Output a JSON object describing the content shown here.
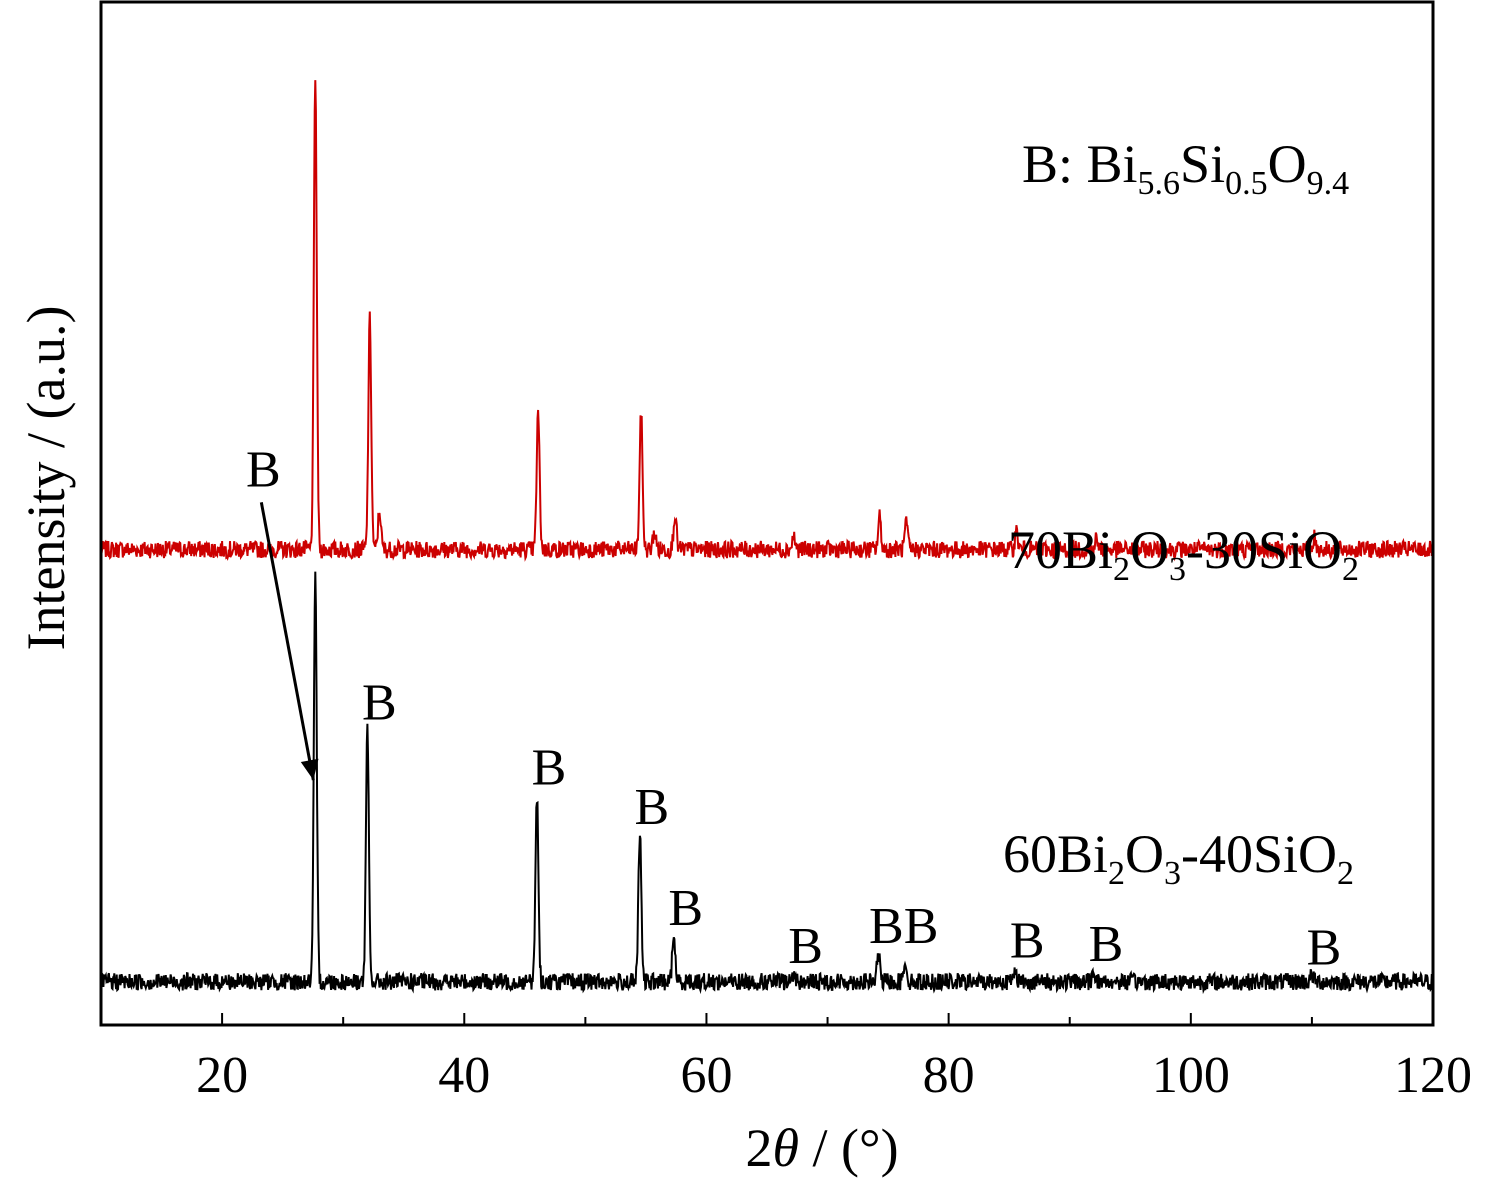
{
  "chart_data": {
    "type": "line",
    "xlabel_prefix": "2",
    "xlabel_theta": "θ",
    "xlabel_suffix": " / (°)",
    "ylabel": "Intensity / (a.u.)",
    "xlim": [
      10,
      120
    ],
    "xticks": [
      20,
      40,
      60,
      80,
      100,
      120
    ],
    "yticks_shown": false,
    "legend_note": {
      "prefix": "B: Bi",
      "sub1": "5.6",
      "mid1": "Si",
      "sub2": "0.5",
      "mid2": "O",
      "sub3": "9.4"
    },
    "series": [
      {
        "name": "70Bi2O3-30SiO2",
        "label_parts": {
          "a": "70Bi",
          "s1": "2",
          "b": "O",
          "s2": "3",
          "c": "-30SiO",
          "s3": "2"
        },
        "color": "#cc0000",
        "baseline": 6.6,
        "noise": 0.12,
        "peaks": [
          {
            "x": 27.7,
            "h": 6.6
          },
          {
            "x": 32.2,
            "h": 3.2
          },
          {
            "x": 33.0,
            "h": 0.55
          },
          {
            "x": 46.1,
            "h": 1.9
          },
          {
            "x": 54.6,
            "h": 1.9
          },
          {
            "x": 55.7,
            "h": 0.25
          },
          {
            "x": 57.4,
            "h": 0.5
          },
          {
            "x": 67.2,
            "h": 0.18
          },
          {
            "x": 74.3,
            "h": 0.45
          },
          {
            "x": 76.5,
            "h": 0.35
          },
          {
            "x": 85.6,
            "h": 0.25
          },
          {
            "x": 92.2,
            "h": 0.15
          },
          {
            "x": 110.2,
            "h": 0.18
          }
        ]
      },
      {
        "name": "60Bi2O3-40SiO2",
        "label_parts": {
          "a": "60Bi",
          "s1": "2",
          "b": "O",
          "s2": "3",
          "c": "-40SiO",
          "s3": "2"
        },
        "color": "#000000",
        "baseline": 0.6,
        "noise": 0.12,
        "peaks": [
          {
            "x": 27.7,
            "h": 5.6
          },
          {
            "x": 32.0,
            "h": 3.5
          },
          {
            "x": 46.0,
            "h": 2.6
          },
          {
            "x": 54.5,
            "h": 2.05
          },
          {
            "x": 57.3,
            "h": 0.65
          },
          {
            "x": 67.2,
            "h": 0.12
          },
          {
            "x": 74.2,
            "h": 0.4
          },
          {
            "x": 76.4,
            "h": 0.3
          },
          {
            "x": 85.5,
            "h": 0.2
          },
          {
            "x": 92.0,
            "h": 0.15
          },
          {
            "x": 110.0,
            "h": 0.1
          }
        ]
      }
    ],
    "ylim": [
      0,
      14.2
    ],
    "peak_markers": [
      {
        "label": "B",
        "x": 27.7,
        "arrow": true
      },
      {
        "label": "B",
        "x": 32.0
      },
      {
        "label": "B",
        "x": 46.0
      },
      {
        "label": "B",
        "x": 54.5
      },
      {
        "label": "B",
        "x": 57.3
      },
      {
        "label": "B",
        "x": 67.2
      },
      {
        "label": "BB",
        "x": 75.3
      },
      {
        "label": "B",
        "x": 85.5
      },
      {
        "label": "B",
        "x": 92.0
      },
      {
        "label": "B",
        "x": 110.0
      }
    ]
  }
}
